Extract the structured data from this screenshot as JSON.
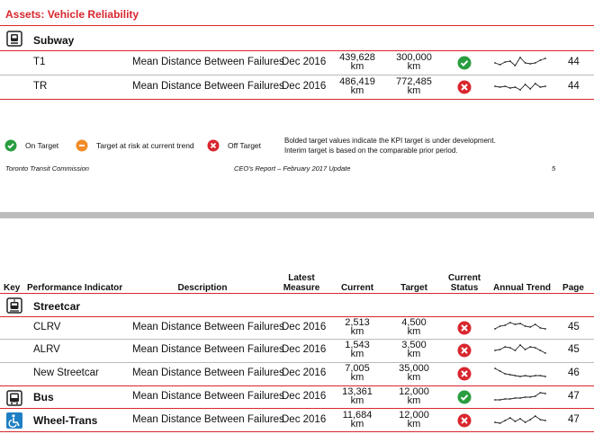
{
  "page1": {
    "title": "Assets: Vehicle Reliability",
    "section": "Subway",
    "rows": [
      {
        "name": "T1",
        "description": "Mean Distance Between Failures",
        "latest": "Dec 2016",
        "current": "439,628",
        "current_unit": "km",
        "target": "300,000",
        "target_unit": "km",
        "page": "44"
      },
      {
        "name": "TR",
        "description": "Mean Distance Between Failures",
        "latest": "Dec 2016",
        "current": "486,419",
        "current_unit": "km",
        "target": "772,485",
        "target_unit": "km",
        "page": "44"
      }
    ],
    "legend": [
      "On Target",
      "Target at risk at current trend",
      "Off Target"
    ],
    "note": [
      "Bolded target values indicate the KPI target is under development.",
      "Interim target is based on the comparable prior period."
    ],
    "footer": {
      "left": "Toronto Transit Commission",
      "center": "CEO's Report – February 2017 Update",
      "page": "5"
    }
  },
  "page2": {
    "headers": [
      "Key",
      "Performance Indicator",
      "Description",
      "Latest Measure",
      "Current",
      "Target",
      "Current Status",
      "Annual Trend",
      "Page"
    ],
    "section": "Streetcar",
    "rows": [
      {
        "name": "CLRV",
        "description": "Mean Distance Between Failures",
        "latest": "Dec 2016",
        "current": "2,513",
        "current_unit": "km",
        "target": "4,500",
        "target_unit": "km",
        "page": "45"
      },
      {
        "name": "ALRV",
        "description": "Mean Distance Between Failures",
        "latest": "Dec 2016",
        "current": "1,543",
        "current_unit": "km",
        "target": "3,500",
        "target_unit": "km",
        "page": "45"
      },
      {
        "name": "New Streetcar",
        "description": "Mean Distance Between Failures",
        "latest": "Dec 2016",
        "current": "7,005",
        "current_unit": "km",
        "target": "35,000",
        "target_unit": "km",
        "page": "46"
      },
      {
        "name": "Bus",
        "description": "Mean Distance Between Failures",
        "latest": "Dec 2016",
        "current": "13,361",
        "current_unit": "km",
        "target": "12,000",
        "target_unit": "km",
        "page": "47"
      },
      {
        "name": "Wheel-Trans",
        "description": "Mean Distance Between Failures",
        "latest": "Dec 2016",
        "current": "11,684",
        "current_unit": "km",
        "target": "12,000",
        "target_unit": "km",
        "page": "47"
      }
    ]
  }
}
